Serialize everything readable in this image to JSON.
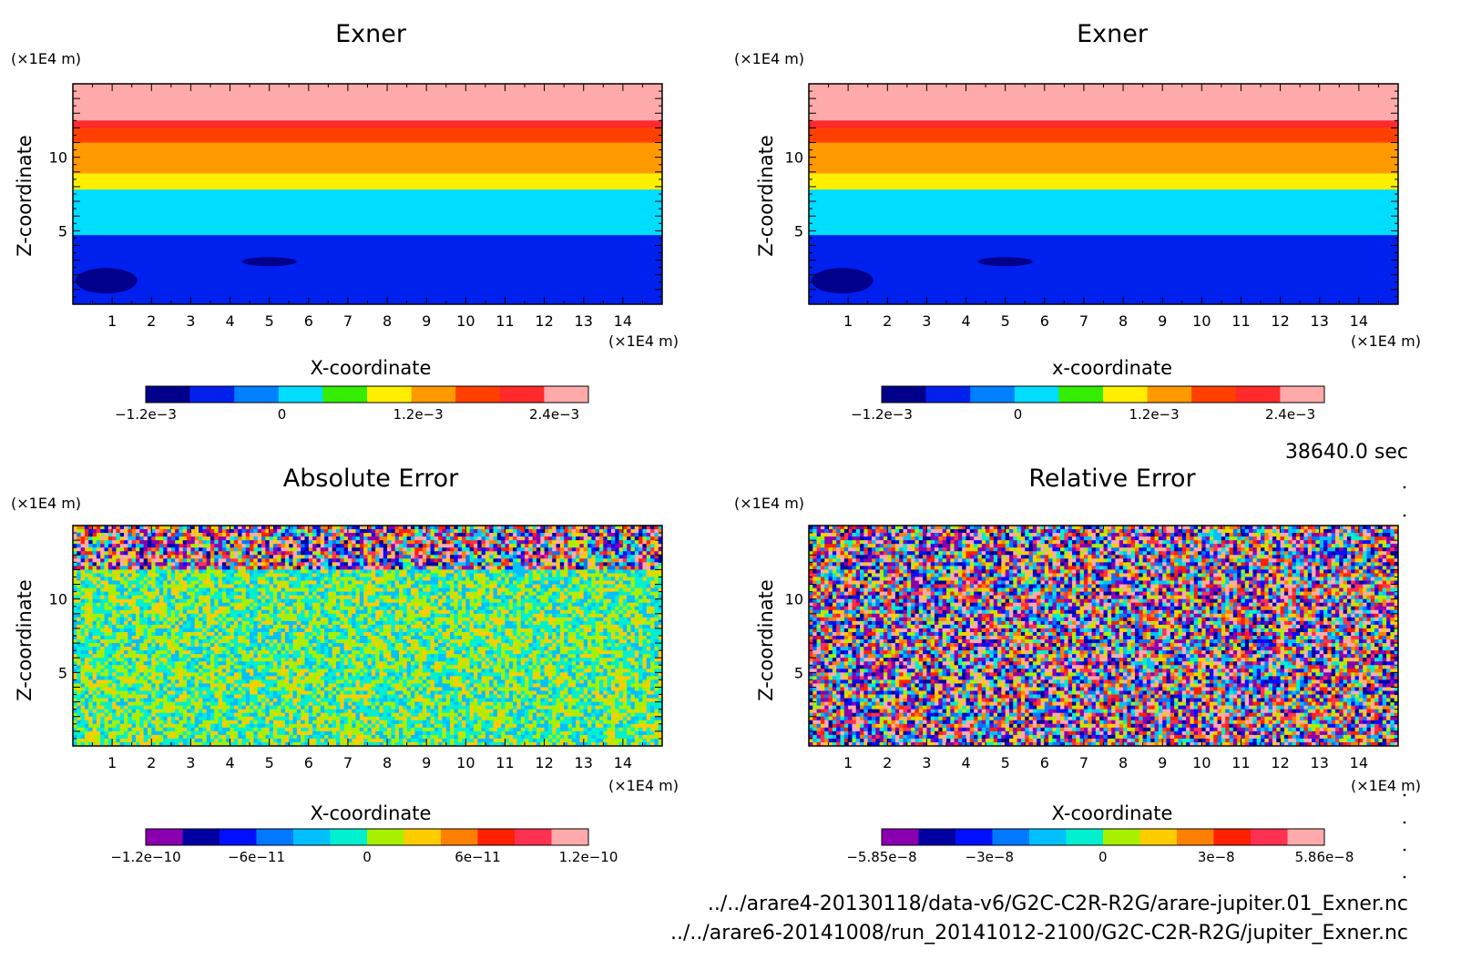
{
  "time_label": "38640.0 sec",
  "footer": {
    "file_1": "../../arare4-20130118/data-v6/G2C-C2R-R2G/arare-jupiter.01_Exner.nc",
    "file_2": "../../arare6-20141008/run_20141012-2100/G2C-C2R-R2G/jupiter_Exner.nc"
  },
  "chart_data": [
    {
      "type": "heatmap",
      "title": "Exner",
      "xlabel": "X-coordinate",
      "ylabel": "Z-coordinate",
      "x_unit": "(×1E4 m)",
      "y_unit": "(×1E4 m)",
      "xlim": [
        0,
        15
      ],
      "ylim": [
        0,
        15
      ],
      "x_ticks": [
        1,
        2,
        3,
        4,
        5,
        6,
        7,
        8,
        9,
        10,
        11,
        12,
        13,
        14
      ],
      "y_ticks": [
        5,
        10
      ],
      "field": "horizontal bands of constant level increasing with height",
      "band_levels_bottom_to_top": [
        {
          "z_top": 4.7,
          "value": -0.0006
        },
        {
          "z_top": 6.3,
          "value": 0.0
        },
        {
          "z_top": 7.8,
          "value": 0.0003
        },
        {
          "z_top": 8.9,
          "value": 0.0009
        },
        {
          "z_top": 10.0,
          "value": 0.0012
        },
        {
          "z_top": 11.0,
          "value": 0.0015
        },
        {
          "z_top": 12.0,
          "value": 0.0018
        },
        {
          "z_top": 12.5,
          "value": 0.0021
        },
        {
          "z_top": 15.0,
          "value": 0.0024
        }
      ],
      "colorbar": {
        "colors": [
          "#00008c",
          "#0020ee",
          "#0080ff",
          "#00ddff",
          "#33ee00",
          "#ffee00",
          "#ff9900",
          "#ff4000",
          "#ff2a2a",
          "#ffaaaa"
        ],
        "tick_labels": [
          "−1.2e−3",
          "0",
          "1.2e−3",
          "2.4e−3"
        ],
        "tick_values": [
          -0.0012,
          0,
          0.0012,
          0.0024
        ],
        "range": [
          -0.0012,
          0.0027
        ]
      }
    },
    {
      "type": "heatmap",
      "title": "Exner",
      "xlabel": "x-coordinate",
      "ylabel": "Z-coordinate",
      "x_unit": "(×1E4 m)",
      "y_unit": "(×1E4 m)",
      "xlim": [
        0,
        15
      ],
      "ylim": [
        0,
        15
      ],
      "x_ticks": [
        1,
        2,
        3,
        4,
        5,
        6,
        7,
        8,
        9,
        10,
        11,
        12,
        13,
        14
      ],
      "y_ticks": [
        5,
        10
      ],
      "field": "horizontal bands of constant level increasing with height",
      "band_levels_bottom_to_top": [
        {
          "z_top": 4.7,
          "value": -0.0006
        },
        {
          "z_top": 6.3,
          "value": 0.0
        },
        {
          "z_top": 7.8,
          "value": 0.0003
        },
        {
          "z_top": 8.9,
          "value": 0.0009
        },
        {
          "z_top": 10.0,
          "value": 0.0012
        },
        {
          "z_top": 11.0,
          "value": 0.0015
        },
        {
          "z_top": 12.0,
          "value": 0.0018
        },
        {
          "z_top": 12.5,
          "value": 0.0021
        },
        {
          "z_top": 15.0,
          "value": 0.0024
        }
      ],
      "colorbar": {
        "colors": [
          "#00008c",
          "#0020ee",
          "#0080ff",
          "#00ddff",
          "#33ee00",
          "#ffee00",
          "#ff9900",
          "#ff4000",
          "#ff2a2a",
          "#ffaaaa"
        ],
        "tick_labels": [
          "−1.2e−3",
          "0",
          "1.2e−3",
          "2.4e−3"
        ],
        "tick_values": [
          -0.0012,
          0,
          0.0012,
          0.0024
        ],
        "range": [
          -0.0012,
          0.0027
        ]
      }
    },
    {
      "type": "heatmap",
      "title": "Absolute Error",
      "xlabel": "X-coordinate",
      "ylabel": "Z-coordinate",
      "x_unit": "(×1E4 m)",
      "y_unit": "(×1E4 m)",
      "xlim": [
        0,
        15
      ],
      "ylim": [
        0,
        15
      ],
      "x_ticks": [
        1,
        2,
        3,
        4,
        5,
        6,
        7,
        8,
        9,
        10,
        11,
        12,
        13,
        14
      ],
      "y_ticks": [
        5,
        10
      ],
      "field": "noise; large amplitude above z=12, small amplitude below",
      "noise_regions": [
        {
          "z_range": [
            0,
            12
          ],
          "amplitude": 3e-11
        },
        {
          "z_range": [
            12,
            15
          ],
          "amplitude": 1.2e-10
        }
      ],
      "colorbar": {
        "colors": [
          "#8a00b0",
          "#0000a0",
          "#0010ff",
          "#0078ff",
          "#00c0ff",
          "#00f0d0",
          "#a8f000",
          "#ffcc00",
          "#ff8000",
          "#ff2000",
          "#ff3050",
          "#ffaaaa"
        ],
        "tick_labels": [
          "−1.2e−10",
          "−6e−11",
          "0",
          "6e−11",
          "1.2e−10"
        ],
        "tick_values": [
          -1.2e-10,
          -6e-11,
          0,
          6e-11,
          1.2e-10
        ],
        "range": [
          -1.2e-10,
          1.2e-10
        ]
      }
    },
    {
      "type": "heatmap",
      "title": "Relative Error",
      "xlabel": "X-coordinate",
      "ylabel": "Z-coordinate",
      "x_unit": "(×1E4 m)",
      "y_unit": "(×1E4 m)",
      "xlim": [
        0,
        15
      ],
      "ylim": [
        0,
        15
      ],
      "x_ticks": [
        1,
        2,
        3,
        4,
        5,
        6,
        7,
        8,
        9,
        10,
        11,
        12,
        13,
        14
      ],
      "y_ticks": [
        5,
        10
      ],
      "field": "noise of roughly uniform amplitude",
      "noise_regions": [
        {
          "z_range": [
            0,
            15
          ],
          "amplitude": 5.85e-08
        }
      ],
      "colorbar": {
        "colors": [
          "#8a00b0",
          "#0000a0",
          "#0010ff",
          "#0078ff",
          "#00c0ff",
          "#00f0d0",
          "#a8f000",
          "#ffcc00",
          "#ff8000",
          "#ff2000",
          "#ff3050",
          "#ffaaaa"
        ],
        "tick_labels": [
          "−5.85e−8",
          "−3e−8",
          "0",
          "3e−8",
          "5.86e−8"
        ],
        "tick_values": [
          -5.85e-08,
          -3e-08,
          0,
          3e-08,
          5.86e-08
        ],
        "range": [
          -5.85e-08,
          5.86e-08
        ]
      }
    }
  ]
}
